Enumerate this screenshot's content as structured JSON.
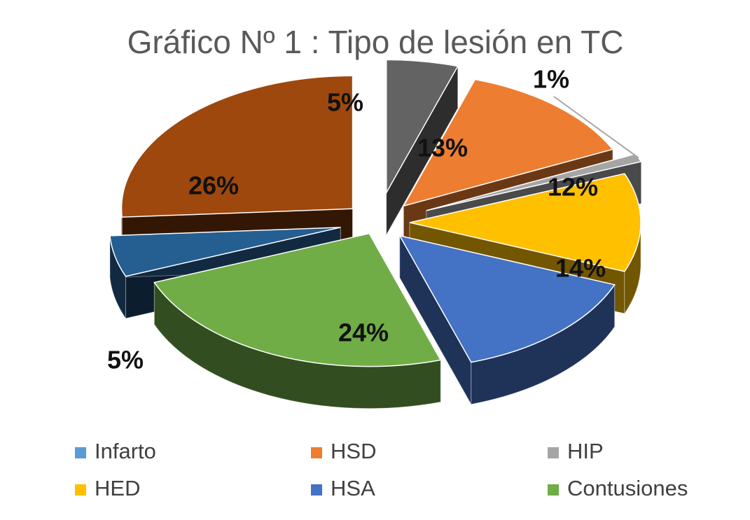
{
  "chart_data": {
    "type": "pie",
    "title": "Gráfico Nº 1 : Tipo de lesión en TC",
    "style": "3d-exploded",
    "legend_position": "bottom",
    "data_labels": "percent",
    "categories": [
      "Infarto",
      "HSD",
      "HIP",
      "HED",
      "HSA",
      "Contusiones"
    ],
    "slices": [
      {
        "label": "HIP",
        "value": 5,
        "text": "5%",
        "color": "#636363"
      },
      {
        "label": "HSD",
        "value": 13,
        "text": "13%",
        "color": "#ED7D31"
      },
      {
        "label": "HIP",
        "value": 1,
        "text": "1%",
        "color": "#A5A5A5"
      },
      {
        "label": "HED",
        "value": 12,
        "text": "12%",
        "color": "#FFC000"
      },
      {
        "label": "HSA",
        "value": 14,
        "text": "14%",
        "color": "#4472C4"
      },
      {
        "label": "Contusiones",
        "value": 24,
        "text": "24%",
        "color": "#70AD47"
      },
      {
        "label": "Infarto",
        "value": 5,
        "text": "5%",
        "color": "#255E91"
      },
      {
        "label": "HSD",
        "value": 26,
        "text": "26%",
        "color": "#9E480E"
      }
    ],
    "legend": [
      {
        "label": "Infarto",
        "color": "#5B9BD5"
      },
      {
        "label": "HSD",
        "color": "#ED7D31"
      },
      {
        "label": "HIP",
        "color": "#A5A5A5"
      },
      {
        "label": "HED",
        "color": "#FFC000"
      },
      {
        "label": "HSA",
        "color": "#4472C4"
      },
      {
        "label": "Contusiones",
        "color": "#70AD47"
      }
    ]
  }
}
